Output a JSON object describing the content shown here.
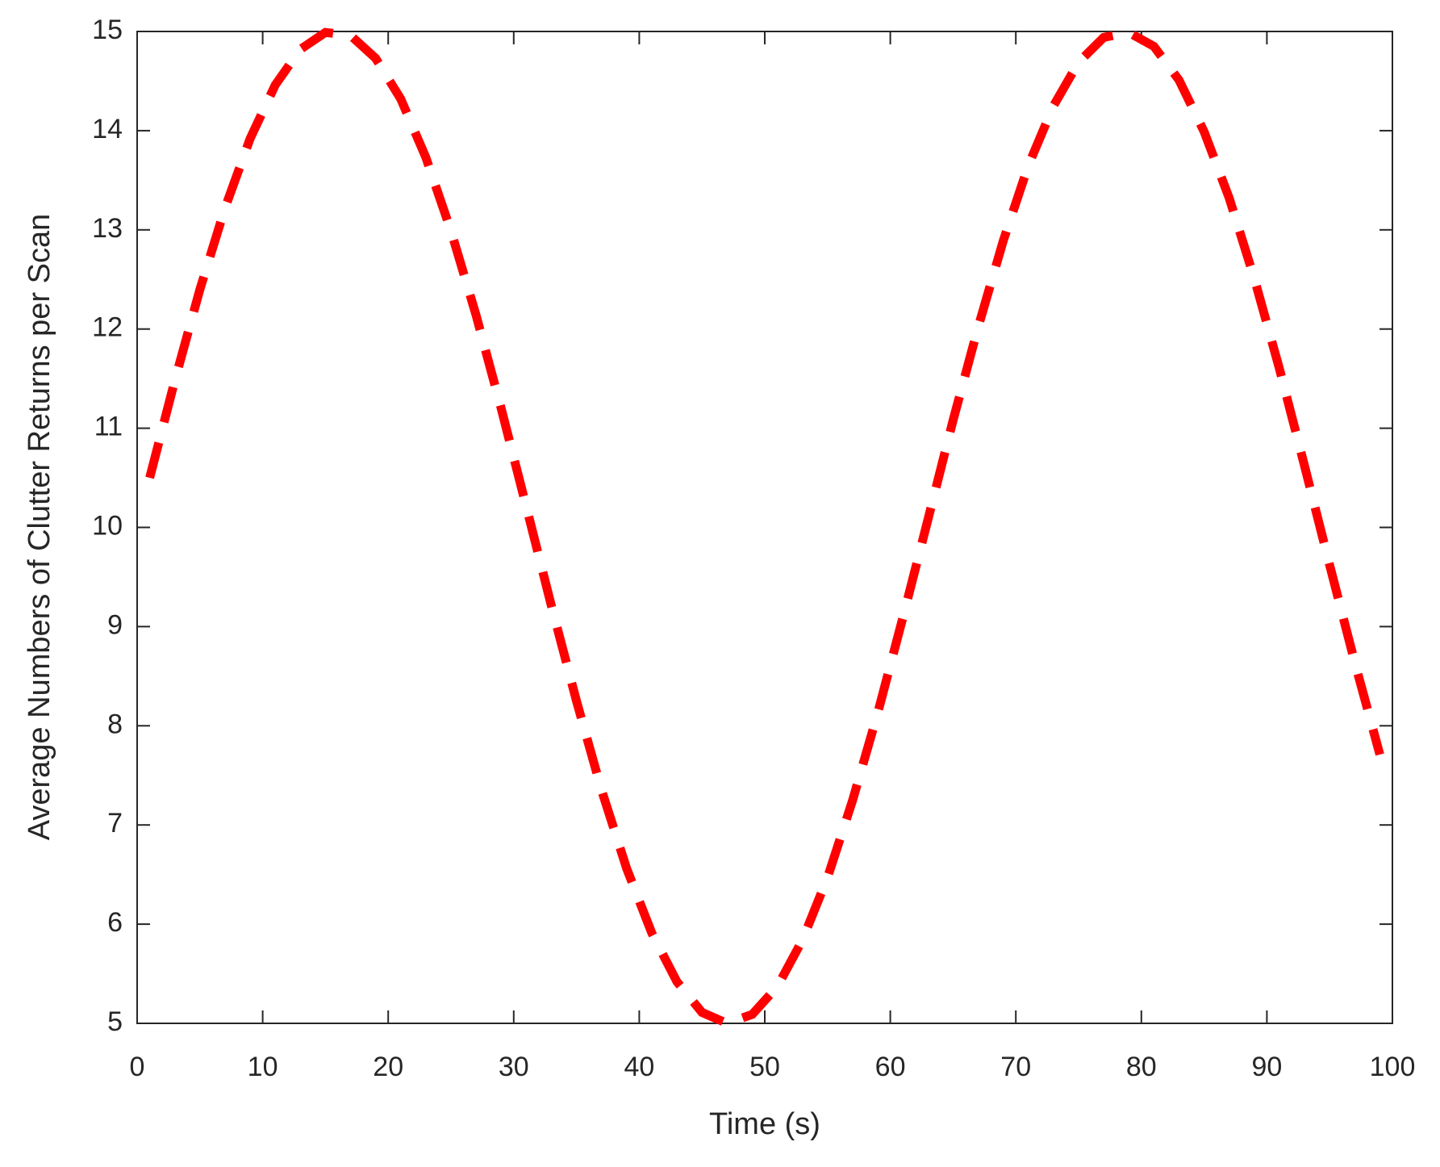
{
  "chart_data": {
    "type": "line",
    "xlabel": "Time (s)",
    "ylabel": "Average Numbers of Clutter Returns per Scan",
    "x": [
      1,
      3,
      5,
      7,
      9,
      11,
      13,
      15,
      17,
      19,
      21,
      23,
      25,
      27,
      29,
      31,
      33,
      35,
      37,
      39,
      41,
      43,
      45,
      47,
      49,
      51,
      53,
      55,
      57,
      59,
      61,
      63,
      65,
      67,
      69,
      71,
      73,
      75,
      77,
      79,
      81,
      83,
      85,
      87,
      89,
      91,
      93,
      95,
      97,
      99
    ],
    "series": [
      {
        "color": "#ff0000",
        "values": [
          10.5,
          11.48,
          12.4,
          13.22,
          13.92,
          14.46,
          14.82,
          14.99,
          14.96,
          14.73,
          14.32,
          13.73,
          12.99,
          12.14,
          11.2,
          10.21,
          9.21,
          8.25,
          7.35,
          6.56,
          5.91,
          5.42,
          5.11,
          5.0,
          5.09,
          5.37,
          5.84,
          6.47,
          7.25,
          8.13,
          9.09,
          10.08,
          11.08,
          12.02,
          12.89,
          13.65,
          14.25,
          14.69,
          14.94,
          14.99,
          14.85,
          14.51,
          13.99,
          13.32,
          12.51,
          11.6,
          10.62,
          9.62,
          8.64,
          7.71
        ]
      }
    ],
    "xlim": [
      0,
      100
    ],
    "xticks": [
      0,
      10,
      20,
      30,
      40,
      50,
      60,
      70,
      80,
      90,
      100
    ],
    "ylim": [
      5,
      15
    ],
    "yticks": [
      5,
      6,
      7,
      8,
      9,
      10,
      11,
      12,
      13,
      14,
      15
    ],
    "grid": false,
    "line_style": "dashed"
  }
}
